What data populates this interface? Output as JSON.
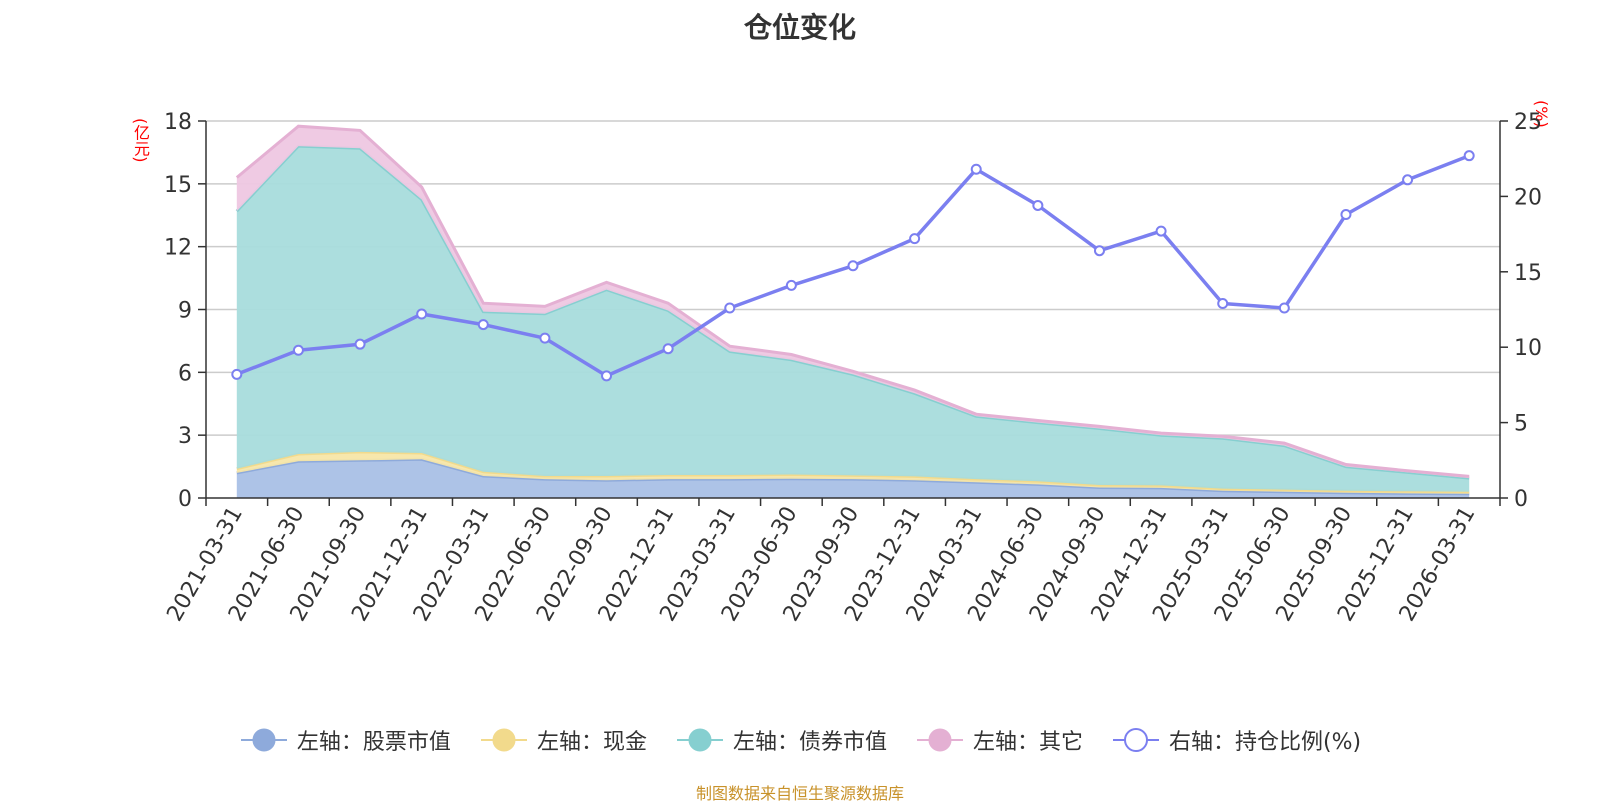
{
  "chart_data": {
    "type": "area",
    "title": "仓位变化",
    "left_axis_unit": "(亿元)",
    "right_axis_unit": "(%)",
    "categories": [
      "2021-03-31",
      "2021-06-30",
      "2021-09-30",
      "2021-12-31",
      "2022-03-31",
      "2022-06-30",
      "2022-09-30",
      "2022-12-31",
      "2023-03-31",
      "2023-06-30",
      "2023-09-30",
      "2023-12-31",
      "2024-03-31",
      "2024-06-30",
      "2024-09-30",
      "2024-12-31",
      "2025-03-31",
      "2025-06-30",
      "2025-09-30",
      "2025-12-31",
      "2026-03-31"
    ],
    "left_ylim": [
      0,
      18
    ],
    "left_ticks": [
      0,
      3,
      6,
      9,
      12,
      15,
      18
    ],
    "right_ylim": [
      0,
      25
    ],
    "right_ticks": [
      0,
      5,
      10,
      15,
      20,
      25
    ],
    "stacked_series": [
      {
        "name": "左轴：股票市值",
        "color": "#a9c0e6",
        "line": "#8eaadb",
        "values": [
          1.2,
          1.75,
          1.8,
          1.85,
          1.05,
          0.9,
          0.85,
          0.9,
          0.9,
          0.92,
          0.9,
          0.85,
          0.75,
          0.65,
          0.5,
          0.48,
          0.35,
          0.3,
          0.25,
          0.22,
          0.2
        ]
      },
      {
        "name": "左轴：现金",
        "color": "#f7e6a8",
        "line": "#f2da8c",
        "values": [
          0.2,
          0.35,
          0.4,
          0.3,
          0.2,
          0.15,
          0.2,
          0.2,
          0.2,
          0.2,
          0.18,
          0.18,
          0.15,
          0.15,
          0.12,
          0.12,
          0.1,
          0.1,
          0.1,
          0.1,
          0.1
        ]
      },
      {
        "name": "左轴：债券市值",
        "color": "#a8dcdc",
        "line": "#86cfd0",
        "values": [
          12.3,
          14.7,
          14.5,
          12.1,
          7.65,
          7.75,
          8.9,
          7.85,
          5.9,
          5.48,
          4.82,
          3.97,
          3.0,
          2.8,
          2.7,
          2.4,
          2.4,
          2.1,
          1.15,
          0.9,
          0.65
        ]
      },
      {
        "name": "左轴：其它",
        "color": "#eec7e1",
        "line": "#e4b0d3",
        "values": [
          1.6,
          0.95,
          0.85,
          0.6,
          0.4,
          0.35,
          0.35,
          0.35,
          0.25,
          0.25,
          0.15,
          0.15,
          0.1,
          0.1,
          0.1,
          0.1,
          0.1,
          0.12,
          0.1,
          0.08,
          0.08
        ]
      }
    ],
    "line_series": {
      "name": "右轴：持仓比例(%)",
      "color": "#7b7ff0",
      "values": [
        8.2,
        9.8,
        10.2,
        12.2,
        11.5,
        10.6,
        8.1,
        9.9,
        12.6,
        14.1,
        15.4,
        17.2,
        21.8,
        19.4,
        16.4,
        17.7,
        12.9,
        12.6,
        18.8,
        21.1,
        22.7
      ]
    }
  },
  "source_text": "制图数据来自恒生聚源数据库"
}
